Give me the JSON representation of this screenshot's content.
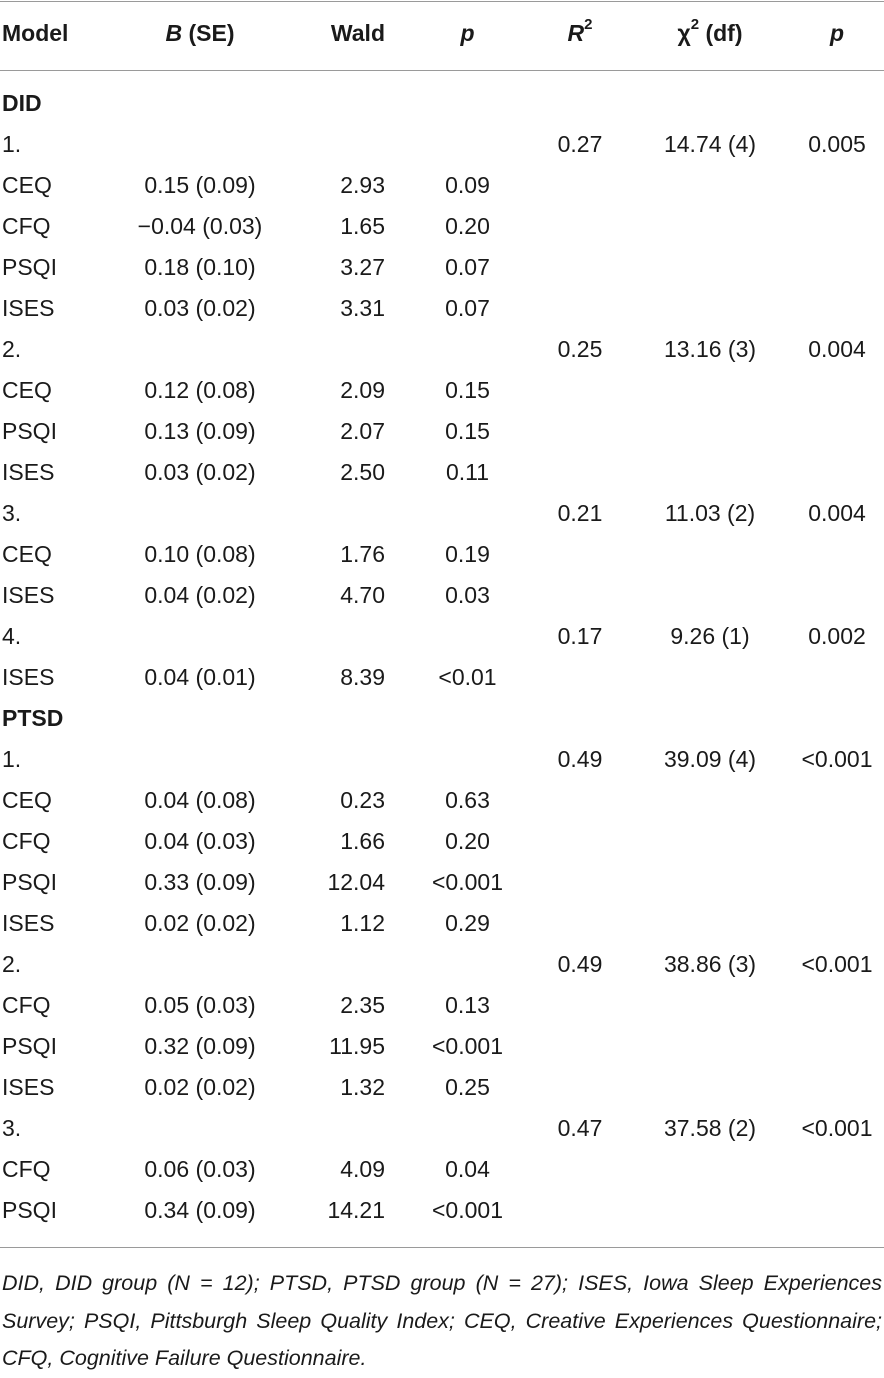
{
  "table": {
    "headers": {
      "model": "Model",
      "b_italic": "B",
      "b_rest": " (SE)",
      "wald": "Wald",
      "p1": "p",
      "r2_letter": "R",
      "r2_sup": "2",
      "chi_symbol": "χ",
      "chi_sup": "2",
      "chi_rest": " (df)",
      "p2": "p"
    },
    "rows": [
      {
        "model": "DID",
        "group": true
      },
      {
        "model": "1.",
        "b": "",
        "wald": "",
        "p": "",
        "r2": "0.27",
        "chi": "14.74 (4)",
        "p2": "0.005"
      },
      {
        "model": "CEQ",
        "b": "0.15 (0.09)",
        "wald": "2.93",
        "p": "0.09",
        "r2": "",
        "chi": "",
        "p2": ""
      },
      {
        "model": "CFQ",
        "b": "−0.04 (0.03)",
        "wald": "1.65",
        "p": "0.20",
        "r2": "",
        "chi": "",
        "p2": ""
      },
      {
        "model": "PSQI",
        "b": "0.18 (0.10)",
        "wald": "3.27",
        "p": "0.07",
        "r2": "",
        "chi": "",
        "p2": ""
      },
      {
        "model": "ISES",
        "b": "0.03 (0.02)",
        "wald": "3.31",
        "p": "0.07",
        "r2": "",
        "chi": "",
        "p2": ""
      },
      {
        "model": "2.",
        "b": "",
        "wald": "",
        "p": "",
        "r2": "0.25",
        "chi": "13.16 (3)",
        "p2": "0.004"
      },
      {
        "model": "CEQ",
        "b": "0.12 (0.08)",
        "wald": "2.09",
        "p": "0.15",
        "r2": "",
        "chi": "",
        "p2": ""
      },
      {
        "model": "PSQI",
        "b": "0.13 (0.09)",
        "wald": "2.07",
        "p": "0.15",
        "r2": "",
        "chi": "",
        "p2": ""
      },
      {
        "model": "ISES",
        "b": "0.03 (0.02)",
        "wald": "2.50",
        "p": "0.11",
        "r2": "",
        "chi": "",
        "p2": ""
      },
      {
        "model": "3.",
        "b": "",
        "wald": "",
        "p": "",
        "r2": "0.21",
        "chi": "11.03 (2)",
        "p2": "0.004"
      },
      {
        "model": "CEQ",
        "b": "0.10 (0.08)",
        "wald": "1.76",
        "p": "0.19",
        "r2": "",
        "chi": "",
        "p2": ""
      },
      {
        "model": "ISES",
        "b": "0.04 (0.02)",
        "wald": "4.70",
        "p": "0.03",
        "r2": "",
        "chi": "",
        "p2": ""
      },
      {
        "model": "4.",
        "b": "",
        "wald": "",
        "p": "",
        "r2": "0.17",
        "chi": "9.26 (1)",
        "p2": "0.002"
      },
      {
        "model": "ISES",
        "b": "0.04 (0.01)",
        "wald": "8.39",
        "p": "<0.01",
        "r2": "",
        "chi": "",
        "p2": ""
      },
      {
        "model": "PTSD",
        "group": true
      },
      {
        "model": "1.",
        "b": "",
        "wald": "",
        "p": "",
        "r2": "0.49",
        "chi": "39.09 (4)",
        "p2": "<0.001"
      },
      {
        "model": "CEQ",
        "b": "0.04 (0.08)",
        "wald": "0.23",
        "p": "0.63",
        "r2": "",
        "chi": "",
        "p2": ""
      },
      {
        "model": "CFQ",
        "b": "0.04 (0.03)",
        "wald": "1.66",
        "p": "0.20",
        "r2": "",
        "chi": "",
        "p2": ""
      },
      {
        "model": "PSQI",
        "b": "0.33 (0.09)",
        "wald": "12.04",
        "p": "<0.001",
        "r2": "",
        "chi": "",
        "p2": ""
      },
      {
        "model": "ISES",
        "b": "0.02 (0.02)",
        "wald": "1.12",
        "p": "0.29",
        "r2": "",
        "chi": "",
        "p2": ""
      },
      {
        "model": "2.",
        "b": "",
        "wald": "",
        "p": "",
        "r2": "0.49",
        "chi": "38.86 (3)",
        "p2": "<0.001"
      },
      {
        "model": "CFQ",
        "b": "0.05 (0.03)",
        "wald": "2.35",
        "p": "0.13",
        "r2": "",
        "chi": "",
        "p2": ""
      },
      {
        "model": "PSQI",
        "b": "0.32 (0.09)",
        "wald": "11.95",
        "p": "<0.001",
        "r2": "",
        "chi": "",
        "p2": ""
      },
      {
        "model": "ISES",
        "b": "0.02 (0.02)",
        "wald": "1.32",
        "p": "0.25",
        "r2": "",
        "chi": "",
        "p2": ""
      },
      {
        "model": "3.",
        "b": "",
        "wald": "",
        "p": "",
        "r2": "0.47",
        "chi": "37.58 (2)",
        "p2": "<0.001"
      },
      {
        "model": "CFQ",
        "b": "0.06 (0.03)",
        "wald": "4.09",
        "p": "0.04",
        "r2": "",
        "chi": "",
        "p2": ""
      },
      {
        "model": "PSQI",
        "b": "0.34 (0.09)",
        "wald": "14.21",
        "p": "<0.001",
        "r2": "",
        "chi": "",
        "p2": ""
      }
    ]
  },
  "footnote": "DID, DID group (N = 12); PTSD, PTSD group (N = 27); ISES, Iowa Sleep Experiences Survey; PSQI, Pittsburgh Sleep Quality Index; CEQ, Creative Experiences Questionnaire; CFQ, Cognitive Failure Questionnaire."
}
